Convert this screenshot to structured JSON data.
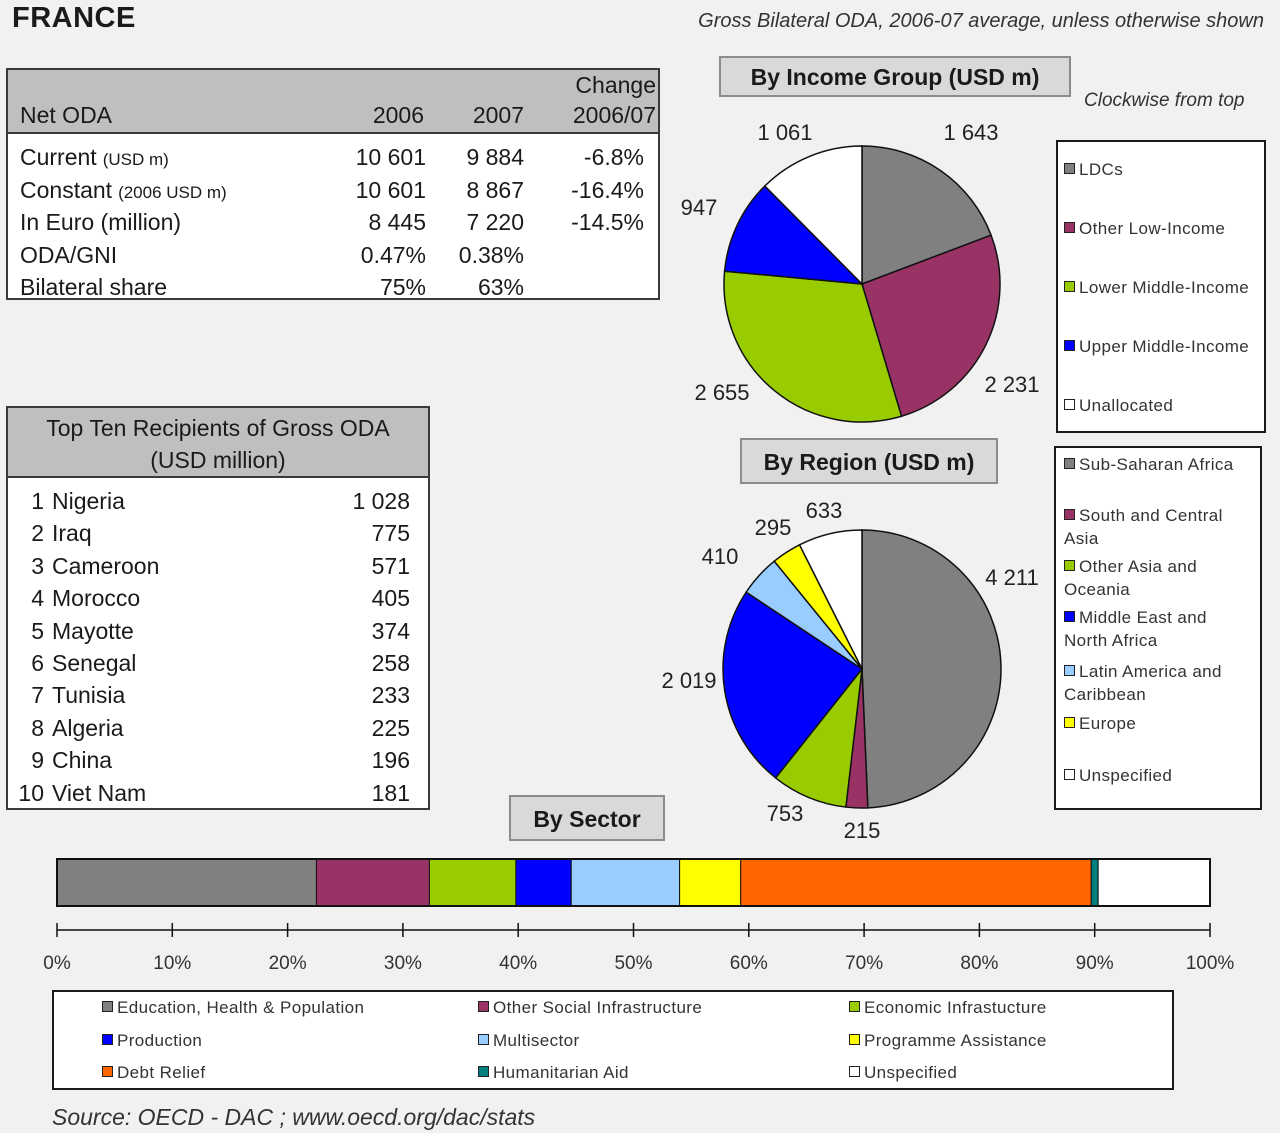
{
  "header": {
    "country": "FRANCE",
    "subtitle": "Gross Bilateral ODA, 2006-07 average, unless otherwise shown"
  },
  "net_oda": {
    "title": "Net ODA",
    "col_2006": "2006",
    "col_2007": "2007",
    "col_change_line1": "Change",
    "col_change_line2": "2006/07",
    "rows": [
      {
        "label": "Current",
        "unit": "(USD m)",
        "v2006": "10 601",
        "v2007": "9 884",
        "change": "-6.8%"
      },
      {
        "label": "Constant",
        "unit": "(2006 USD m)",
        "v2006": "10 601",
        "v2007": "8 867",
        "change": "-16.4%"
      },
      {
        "label": "In Euro (million)",
        "unit": "",
        "v2006": "8 445",
        "v2007": "7 220",
        "change": "-14.5%"
      },
      {
        "label": "ODA/GNI",
        "unit": "",
        "v2006": "0.47%",
        "v2007": "0.38%",
        "change": ""
      },
      {
        "label": "Bilateral share",
        "unit": "",
        "v2006": "75%",
        "v2007": "63%",
        "change": ""
      }
    ]
  },
  "top_ten": {
    "title_line1": "Top Ten Recipients of Gross ODA",
    "title_line2": "(USD million)",
    "rows": [
      {
        "rank": "1",
        "name": "Nigeria",
        "value": "1 028"
      },
      {
        "rank": "2",
        "name": "Iraq",
        "value": "775"
      },
      {
        "rank": "3",
        "name": "Cameroon",
        "value": "571"
      },
      {
        "rank": "4",
        "name": "Morocco",
        "value": "405"
      },
      {
        "rank": "5",
        "name": "Mayotte",
        "value": "374"
      },
      {
        "rank": "6",
        "name": "Senegal",
        "value": "258"
      },
      {
        "rank": "7",
        "name": "Tunisia",
        "value": "233"
      },
      {
        "rank": "8",
        "name": "Algeria",
        "value": "225"
      },
      {
        "rank": "9",
        "name": "China",
        "value": "196"
      },
      {
        "rank": "10",
        "name": "Viet Nam",
        "value": "181"
      }
    ]
  },
  "chart_data": [
    {
      "type": "pie",
      "title": "By Income Group (USD m)",
      "note": "Clockwise from top",
      "slices": [
        {
          "name": "LDCs",
          "value": 1643,
          "label": "1 643",
          "color": "#808080"
        },
        {
          "name": "Other Low-Income",
          "value": 2231,
          "label": "2 231",
          "color": "#993366"
        },
        {
          "name": "Lower Middle-Income",
          "value": 2655,
          "label": "2 655",
          "color": "#99cc00"
        },
        {
          "name": "Upper Middle-Income",
          "value": 947,
          "label": "947",
          "color": "#0000ff"
        },
        {
          "name": "Unallocated",
          "value": 1061,
          "label": "1 061",
          "color": "#ffffff"
        }
      ]
    },
    {
      "type": "pie",
      "title": "By Region (USD m)",
      "slices": [
        {
          "name": "Sub-Saharan Africa",
          "value": 4211,
          "label": "4 211",
          "color": "#808080"
        },
        {
          "name": "South and Central Asia",
          "value": 215,
          "label": "215",
          "color": "#993366"
        },
        {
          "name": "Other Asia and Oceania",
          "value": 753,
          "label": "753",
          "color": "#99cc00"
        },
        {
          "name": "Middle East and North Africa",
          "value": 2019,
          "label": "2 019",
          "color": "#0000ff"
        },
        {
          "name": "Latin America and Caribbean",
          "value": 410,
          "label": "410",
          "color": "#99ccff"
        },
        {
          "name": "Europe",
          "value": 295,
          "label": "295",
          "color": "#ffff00"
        },
        {
          "name": "Unspecified",
          "value": 633,
          "label": "633",
          "color": "#ffffff"
        }
      ]
    },
    {
      "type": "bar",
      "title": "By Sector",
      "stacked": true,
      "orientation": "horizontal",
      "unit": "%",
      "xlim": [
        0,
        100
      ],
      "ticks": [
        "0%",
        "10%",
        "20%",
        "30%",
        "40%",
        "50%",
        "60%",
        "70%",
        "80%",
        "90%",
        "100%"
      ],
      "series": [
        {
          "name": "Education, Health & Population",
          "value": 22.5,
          "color": "#808080"
        },
        {
          "name": "Other Social Infrastructure",
          "value": 9.8,
          "color": "#993366"
        },
        {
          "name": "Economic Infrastucture",
          "value": 7.5,
          "color": "#99cc00"
        },
        {
          "name": "Production",
          "value": 4.8,
          "color": "#0000ff"
        },
        {
          "name": "Multisector",
          "value": 9.4,
          "color": "#99ccff"
        },
        {
          "name": "Programme Assistance",
          "value": 5.3,
          "color": "#ffff00"
        },
        {
          "name": "Debt Relief",
          "value": 30.4,
          "color": "#ff6600"
        },
        {
          "name": "Humanitarian Aid",
          "value": 0.6,
          "color": "#008080"
        },
        {
          "name": "Unspecified",
          "value": 9.7,
          "color": "#ffffff"
        }
      ]
    }
  ],
  "legend_income_note": "Clockwise from top",
  "source": "Source:  OECD - DAC ; www.oecd.org/dac/stats"
}
